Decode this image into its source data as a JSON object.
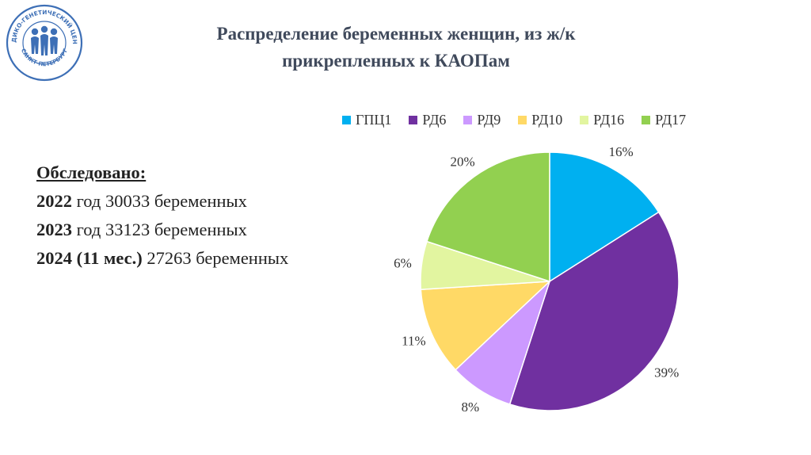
{
  "title": {
    "line1": "Распределение беременных женщин, из ж/к",
    "line2": "прикрепленных к КАОПам"
  },
  "logo": {
    "text_top": "МЕДИКО-ГЕНЕТИЧЕСКИЙ ЦЕНТР",
    "text_bottom": "САНКТ-ПЕТЕРБУРГ",
    "color": "#3d6fb6"
  },
  "stats": {
    "heading": "Обследовано:",
    "rows": [
      {
        "year": "2022",
        "text": " год 30033 беременных"
      },
      {
        "year": "2023",
        "text": " год 33123 беременных"
      },
      {
        "year": "2024 (11 мес.)",
        "text": " 27263 беременных"
      }
    ]
  },
  "chart_data": {
    "type": "pie",
    "title": "",
    "legend_position": "top",
    "series": [
      {
        "values": [
          16,
          39,
          8,
          11,
          6,
          20
        ]
      }
    ],
    "categories": [
      "ГПЦ1",
      "РД6",
      "РД9",
      "РД10",
      "РД16",
      "РД17"
    ],
    "data_labels": [
      "16%",
      "39%",
      "8%",
      "11%",
      "6%",
      "20%"
    ],
    "colors": [
      "#00b0f0",
      "#7030a0",
      "#cc99ff",
      "#ffd966",
      "#e2f5a0",
      "#92d050"
    ],
    "start_angle_deg": 0,
    "direction": "clockwise"
  }
}
